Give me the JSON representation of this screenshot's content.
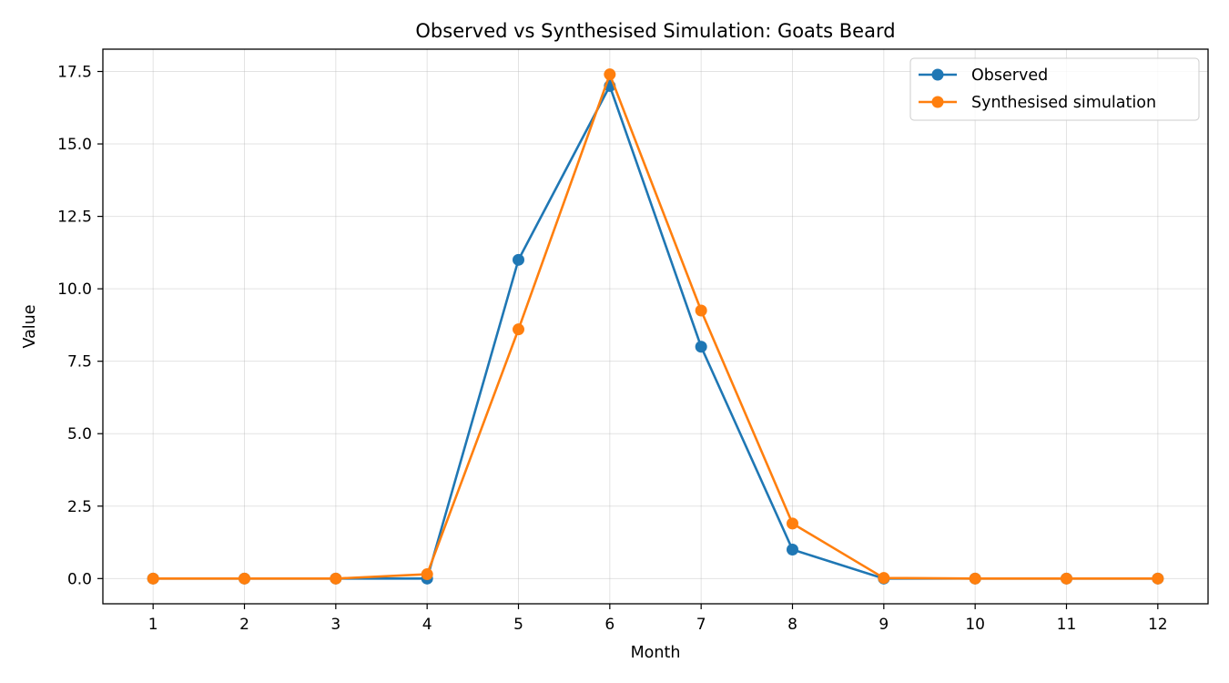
{
  "chart_data": {
    "type": "line",
    "title": "Observed vs Synthesised Simulation: Goats Beard",
    "xlabel": "Month",
    "ylabel": "Value",
    "x": [
      1,
      2,
      3,
      4,
      5,
      6,
      7,
      8,
      9,
      10,
      11,
      12
    ],
    "xlim": [
      0.45,
      12.55
    ],
    "ylim": [
      -0.87,
      18.27
    ],
    "yticks": [
      0.0,
      2.5,
      5.0,
      7.5,
      10.0,
      12.5,
      15.0,
      17.5
    ],
    "ytick_labels": [
      "0.0",
      "2.5",
      "5.0",
      "7.5",
      "10.0",
      "12.5",
      "15.0",
      "17.5"
    ],
    "xtick_labels": [
      "1",
      "2",
      "3",
      "4",
      "5",
      "6",
      "7",
      "8",
      "9",
      "10",
      "11",
      "12"
    ],
    "grid": true,
    "legend_position": "top-right",
    "series": [
      {
        "name": "Observed",
        "color": "#1f77b4",
        "marker": "circle",
        "values": [
          0,
          0,
          0,
          0,
          11,
          17,
          8,
          1,
          0,
          0,
          0,
          0
        ]
      },
      {
        "name": "Synthesised simulation",
        "color": "#ff7f0e",
        "marker": "circle",
        "values": [
          0,
          0,
          0,
          0.15,
          8.6,
          17.4,
          9.25,
          1.9,
          0.02,
          0,
          0,
          0
        ]
      }
    ]
  }
}
